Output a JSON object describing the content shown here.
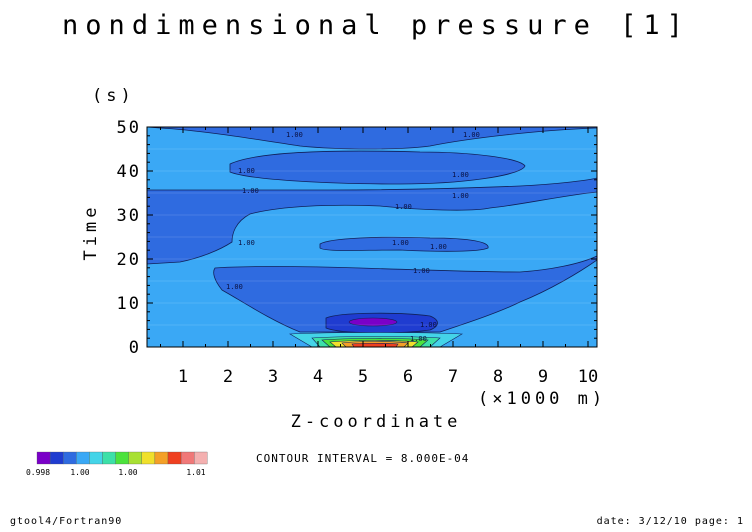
{
  "title": "nondimensional pressure [1]",
  "y_unit": "(s)",
  "y_label": "Time",
  "x_unit": "(×1000 m)",
  "x_label": "Z-coordinate",
  "contour_interval": "CONTOUR INTERVAL = 8.000E-04",
  "footer_left": "gtool4/Fortran90",
  "footer_right": "date: 3/12/10 page: 1",
  "colorbar": {
    "colors": [
      "#7a00c8",
      "#1f3cd0",
      "#2f6be0",
      "#3aa8f5",
      "#44d4e8",
      "#3ce0a8",
      "#4ce23c",
      "#a8e034",
      "#f0e02c",
      "#f4a028",
      "#ef4020",
      "#f07878",
      "#f4b0b0"
    ],
    "labels": [
      "0.998",
      "1.00",
      "1.00",
      "1.01"
    ]
  },
  "chart_data": {
    "type": "contour",
    "title": "nondimensional pressure [1]",
    "xlabel": "Z-coordinate",
    "x_unit": "(×1000 m)",
    "ylabel": "Time",
    "y_unit": "(s)",
    "xlim": [
      0.2,
      10.2
    ],
    "ylim": [
      0,
      50
    ],
    "x_ticks": [
      1,
      2,
      3,
      4,
      5,
      6,
      7,
      8,
      9,
      10
    ],
    "y_ticks": [
      0,
      10,
      20,
      30,
      40,
      50
    ],
    "contour_interval": 0.0008,
    "contour_labels": [
      "1.00",
      "1.00",
      "1.00",
      "1.00",
      "1.00",
      "1.00",
      "1.00",
      "1.00",
      "1.00",
      "1.00",
      "1.00",
      "1.00"
    ],
    "regions": [
      {
        "level": "light",
        "color": "#3aa8f5"
      },
      {
        "level": "dark",
        "color": "#2f6be0"
      },
      {
        "level": "darker",
        "color": "#1f3cd0"
      },
      {
        "level": "min",
        "color": "#7a00c8"
      },
      {
        "level": "max",
        "color": "#ef4020"
      }
    ]
  }
}
